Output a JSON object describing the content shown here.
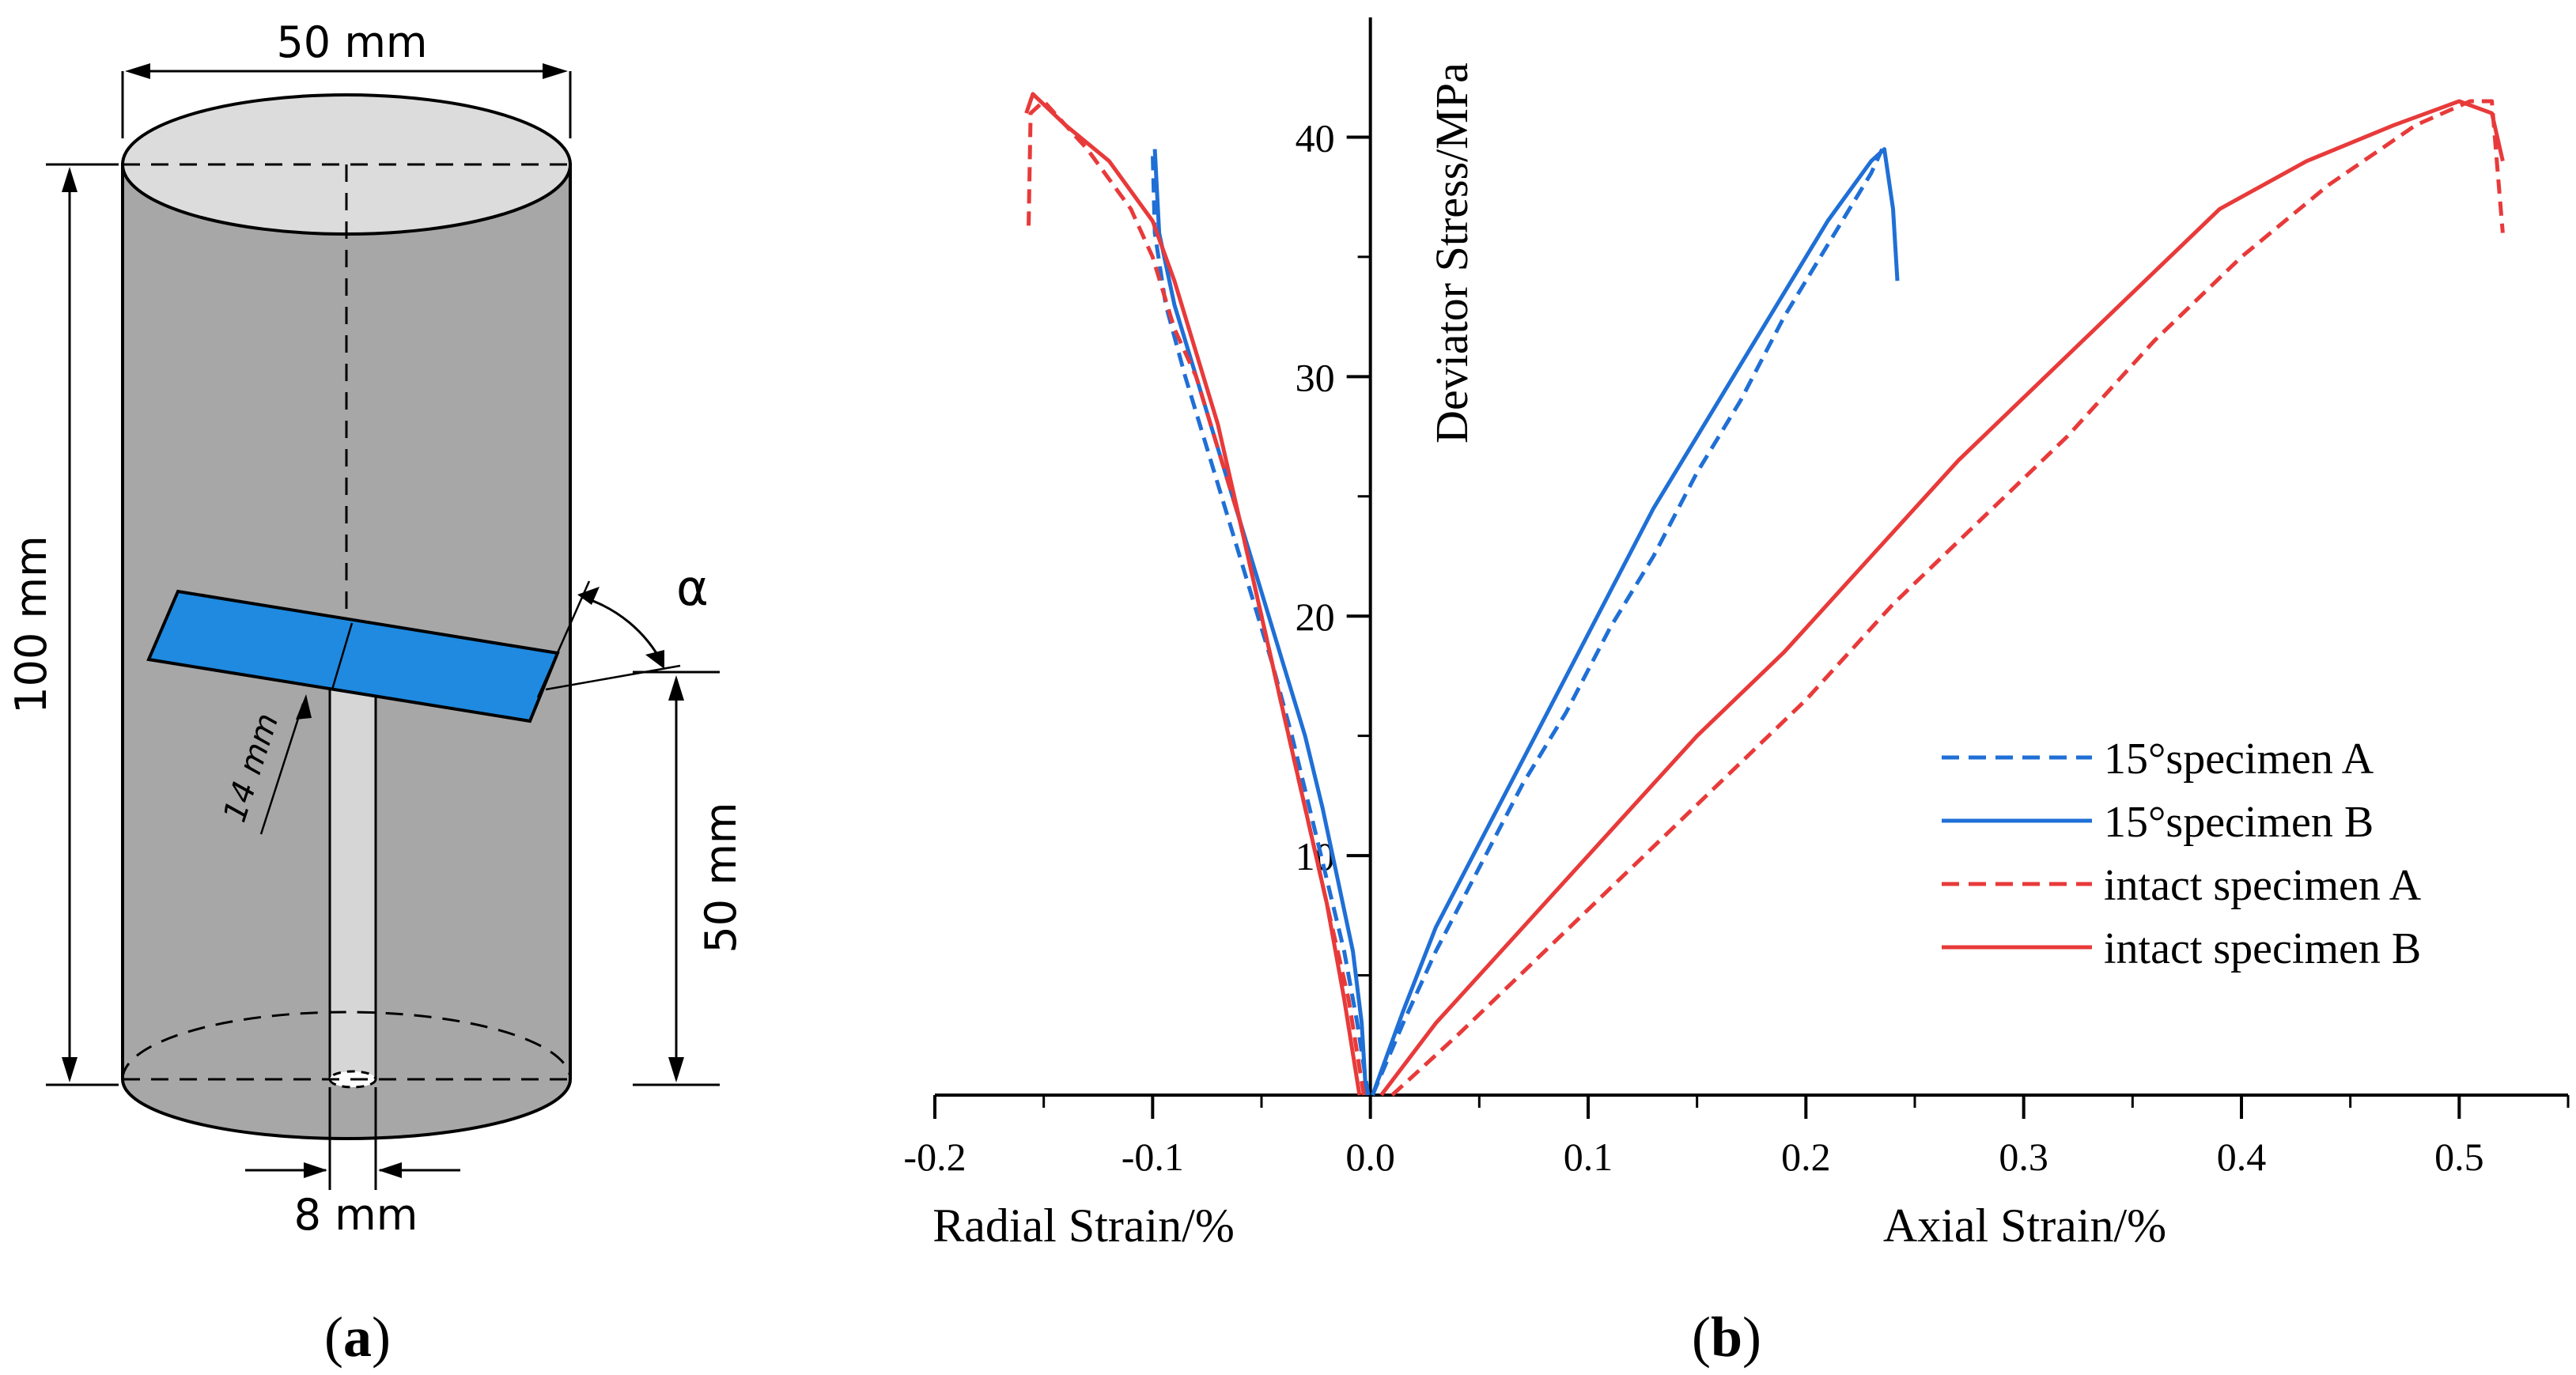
{
  "panel_a": {
    "label_letter": "a",
    "dims": {
      "diameter": "50 mm",
      "height": "100 mm",
      "lower_height": "50 mm",
      "slot_length": "14 mm",
      "hole_diameter": "8 mm",
      "angle": "α"
    },
    "colors": {
      "body": "#a7a7a7",
      "top": "#dcdcdc",
      "slot": "#1f8ae0",
      "hole": "#d6d6d6"
    }
  },
  "panel_b": {
    "label_letter": "b"
  },
  "chart_data": {
    "type": "line",
    "title": "",
    "ylabel": "Deviator Stress/MPa",
    "xlabel_left": "Radial Strain/%",
    "xlabel_right": "Axial Strain/%",
    "xlim": [
      -0.2,
      0.55
    ],
    "ylim": [
      0,
      45
    ],
    "x_ticks": [
      -0.2,
      -0.1,
      0.0,
      0.1,
      0.2,
      0.3,
      0.4,
      0.5
    ],
    "x_tick_labels": [
      "-0.2",
      "-0.1",
      "0.0",
      "0.1",
      "0.2",
      "0.3",
      "0.4",
      "0.5"
    ],
    "y_ticks": [
      10,
      20,
      30,
      40
    ],
    "y_tick_labels": [
      "10",
      "20",
      "30",
      "40"
    ],
    "legend_position": "bottom-right",
    "series": [
      {
        "name": "15°specimen A",
        "color": "#1f6fd6",
        "dash": true,
        "radial": {
          "x": [
            -0.001,
            -0.006,
            -0.012,
            -0.02,
            -0.028,
            -0.036,
            -0.045,
            -0.055,
            -0.065,
            -0.075,
            -0.085,
            -0.094,
            -0.099,
            -0.1
          ],
          "y": [
            0,
            3,
            6,
            9,
            12,
            15,
            18,
            21,
            24,
            27,
            30,
            33,
            36,
            39.5
          ]
        },
        "axial": {
          "x": [
            0.001,
            0.015,
            0.03,
            0.05,
            0.07,
            0.09,
            0.11,
            0.13,
            0.15,
            0.17,
            0.19,
            0.21,
            0.23,
            0.235
          ],
          "y": [
            0,
            3,
            6,
            9.5,
            13,
            16,
            19.5,
            22.5,
            26,
            29,
            32.5,
            35.5,
            38.5,
            39.5
          ]
        }
      },
      {
        "name": "15°specimen B",
        "color": "#1f6fd6",
        "dash": false,
        "radial": {
          "x": [
            -0.002,
            -0.004,
            -0.008,
            -0.015,
            -0.022,
            -0.03,
            -0.04,
            -0.05,
            -0.06,
            -0.07,
            -0.08,
            -0.09,
            -0.097,
            -0.099
          ],
          "y": [
            0,
            3,
            6,
            9,
            12,
            15,
            18,
            21,
            24,
            27,
            30,
            33,
            36,
            39.5
          ]
        },
        "axial": {
          "x": [
            0.001,
            0.015,
            0.03,
            0.05,
            0.07,
            0.09,
            0.11,
            0.13,
            0.15,
            0.17,
            0.19,
            0.21,
            0.23,
            0.236,
            0.24,
            0.242
          ],
          "y": [
            0,
            3.5,
            7,
            10.5,
            14,
            17.5,
            21,
            24.5,
            27.5,
            30.5,
            33.5,
            36.5,
            39,
            39.5,
            37,
            34
          ]
        }
      },
      {
        "name": "intact specimen A",
        "color": "#e83a3a",
        "dash": true,
        "radial": {
          "x": [
            -0.003,
            -0.01,
            -0.02,
            -0.03,
            -0.04,
            -0.05,
            -0.06,
            -0.07,
            -0.08,
            -0.09,
            -0.1,
            -0.11,
            -0.13,
            -0.15,
            -0.156,
            -0.157
          ],
          "y": [
            0,
            4,
            8,
            12,
            16,
            20,
            24,
            27,
            30,
            32,
            35,
            37,
            39.5,
            41.5,
            41,
            36
          ]
        },
        "axial": {
          "x": [
            0.01,
            0.04,
            0.08,
            0.12,
            0.16,
            0.2,
            0.24,
            0.28,
            0.32,
            0.36,
            0.4,
            0.44,
            0.48,
            0.505,
            0.515,
            0.52
          ],
          "y": [
            0,
            2.5,
            6,
            9.5,
            13,
            16.5,
            20.5,
            24,
            27.5,
            31.5,
            35,
            38,
            40.5,
            41.5,
            41.5,
            36
          ]
        }
      },
      {
        "name": "intact specimen B",
        "color": "#e83a3a",
        "dash": false,
        "radial": {
          "x": [
            -0.005,
            -0.012,
            -0.02,
            -0.03,
            -0.04,
            -0.05,
            -0.06,
            -0.07,
            -0.08,
            -0.09,
            -0.1,
            -0.12,
            -0.14,
            -0.155,
            -0.158
          ],
          "y": [
            0,
            4,
            8,
            12,
            16,
            20,
            24,
            28,
            31,
            34,
            36.5,
            39,
            40.5,
            41.8,
            41
          ]
        },
        "axial": {
          "x": [
            0.005,
            0.03,
            0.07,
            0.11,
            0.15,
            0.19,
            0.23,
            0.27,
            0.31,
            0.35,
            0.39,
            0.43,
            0.47,
            0.5,
            0.515,
            0.52
          ],
          "y": [
            0,
            3,
            7,
            11,
            15,
            18.5,
            22.5,
            26.5,
            30,
            33.5,
            37,
            39,
            40.5,
            41.5,
            41,
            39
          ]
        }
      }
    ]
  }
}
